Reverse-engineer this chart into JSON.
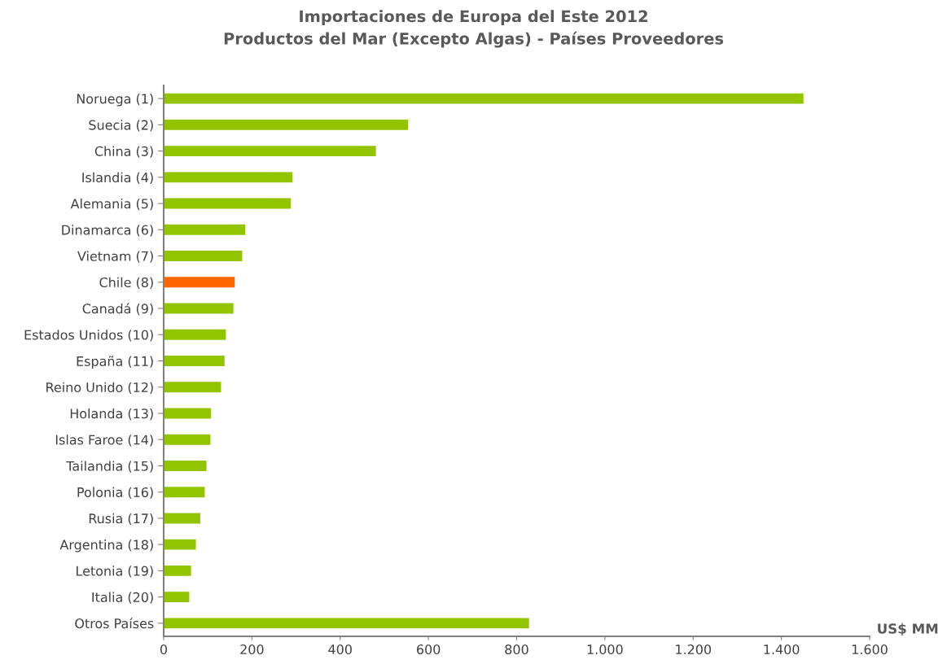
{
  "chart_data": {
    "type": "bar",
    "orientation": "horizontal",
    "title": "Importaciones de Europa del Este 2012\nProductos del Mar (Excepto Algas) - Países Proveedores",
    "xlabel": "US$ MM",
    "categories": [
      "Noruega (1)",
      "Suecia (2)",
      "China (3)",
      "Islandia (4)",
      "Alemania (5)",
      "Dinamarca (6)",
      "Vietnam (7)",
      "Chile (8)",
      "Canadá (9)",
      "Estados Unidos (10)",
      "España (11)",
      "Reino Unido (12)",
      "Holanda (13)",
      "Islas Faroe (14)",
      "Tailandia (15)",
      "Polonia (16)",
      "Rusia (17)",
      "Argentina (18)",
      "Letonia (19)",
      "Italia (20)",
      "Otros Países"
    ],
    "values": [
      1450,
      554,
      481,
      292,
      288,
      185,
      178,
      161,
      158,
      141,
      138,
      130,
      107,
      106,
      97,
      93,
      83,
      73,
      62,
      58,
      828
    ],
    "colors": [
      "#92c500",
      "#92c500",
      "#92c500",
      "#92c500",
      "#92c500",
      "#92c500",
      "#92c500",
      "#ff6600",
      "#92c500",
      "#92c500",
      "#92c500",
      "#92c500",
      "#92c500",
      "#92c500",
      "#92c500",
      "#92c500",
      "#92c500",
      "#92c500",
      "#92c500",
      "#92c500",
      "#92c500"
    ],
    "xlim": [
      0,
      1600
    ],
    "xticks": [
      0,
      200,
      400,
      600,
      800,
      {
        "value": 1000,
        "label": "1.000"
      },
      {
        "value": 1200,
        "label": "1.200"
      },
      {
        "value": 1400,
        "label": "1.400"
      },
      {
        "value": 1600,
        "label": "1.600"
      }
    ],
    "grid": false,
    "legend": false
  }
}
